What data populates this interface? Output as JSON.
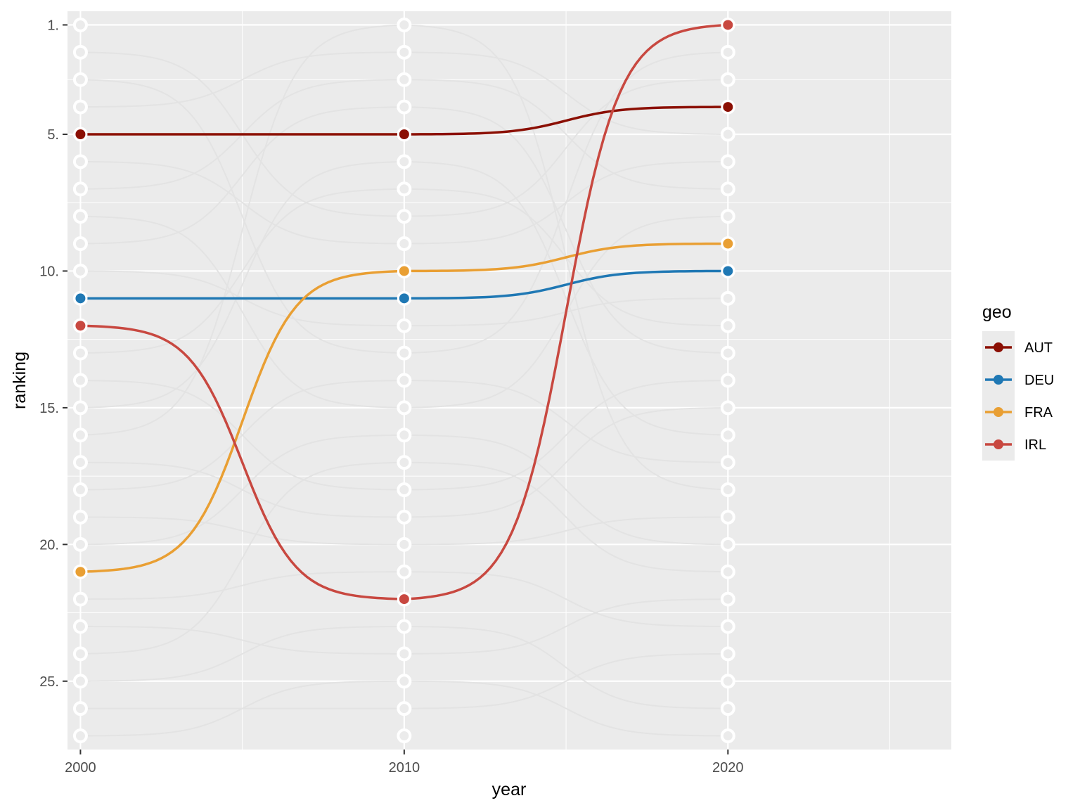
{
  "chart_data": {
    "type": "line",
    "xlabel": "year",
    "ylabel": "ranking",
    "x_ticks": [
      "2000",
      "2010",
      "2020"
    ],
    "y_ticks": [
      "1.",
      "5.",
      "10.",
      "15.",
      "20.",
      "25."
    ],
    "y_tick_values": [
      1,
      5,
      10,
      15,
      20,
      25
    ],
    "xlim": [
      1999.6,
      2026.9
    ],
    "ylim": [
      27.5,
      0.5
    ],
    "y_reversed": true,
    "x_minor_breaks": [
      2005,
      2015,
      2025
    ],
    "x": [
      2000,
      2010,
      2020
    ],
    "rank_count": 27,
    "legend": {
      "title": "geo",
      "position": "right"
    },
    "series": [
      {
        "name": "AUT",
        "color": "#8B0F03",
        "values": [
          5,
          5,
          4
        ]
      },
      {
        "name": "DEU",
        "color": "#1F78B4",
        "values": [
          11,
          11,
          10
        ]
      },
      {
        "name": "FRA",
        "color": "#E99F33",
        "values": [
          21,
          10,
          9
        ]
      },
      {
        "name": "IRL",
        "color": "#C84840",
        "values": [
          12,
          22,
          1
        ]
      }
    ],
    "background_series_color": "#EBEBEB",
    "background_series": [
      [
        2,
        8,
        3
      ],
      [
        3,
        13,
        2
      ],
      [
        4,
        2,
        5
      ],
      [
        6,
        9,
        6
      ],
      [
        7,
        3,
        7
      ],
      [
        8,
        15,
        8
      ],
      [
        9,
        4,
        13
      ],
      [
        10,
        12,
        11
      ],
      [
        13,
        7,
        12
      ],
      [
        14,
        18,
        14
      ],
      [
        15,
        6,
        16
      ],
      [
        16,
        1,
        18
      ],
      [
        17,
        19,
        15
      ],
      [
        18,
        14,
        17
      ],
      [
        19,
        20,
        19
      ],
      [
        20,
        16,
        20
      ],
      [
        22,
        21,
        23
      ],
      [
        23,
        24,
        22
      ],
      [
        24,
        17,
        21
      ],
      [
        25,
        23,
        26
      ],
      [
        26,
        26,
        24
      ],
      [
        27,
        25,
        27
      ]
    ]
  }
}
